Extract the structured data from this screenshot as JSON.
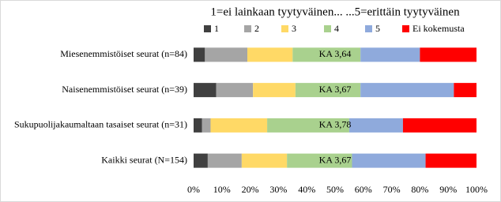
{
  "chart_data": {
    "type": "stacked-bar-horizontal",
    "title": "1=ei lainkaan tyytyväinen... ...5=erittäin tyytyväinen",
    "categories": [
      "Miesenemmistöiset seurat (n=84)",
      "Naisenemmistöiset seurat (n=39)",
      "Sukupuolijakaumaltaan tasaiset seurat (n=31)",
      "Kaikki seurat (N=154)"
    ],
    "annotations": [
      "KA 3,64",
      "KA 3,67",
      "KA 3,78",
      "KA 3,67"
    ],
    "series": [
      {
        "name": "1",
        "color": "#404040",
        "values": [
          4,
          8,
          3,
          5
        ]
      },
      {
        "name": "2",
        "color": "#a5a5a5",
        "values": [
          15,
          13,
          3,
          12
        ]
      },
      {
        "name": "3",
        "color": "#ffd966",
        "values": [
          16,
          15,
          20,
          16
        ]
      },
      {
        "name": "4",
        "color": "#a9d18e",
        "values": [
          24,
          23,
          29,
          23
        ]
      },
      {
        "name": "5",
        "color": "#8faadc",
        "values": [
          21,
          33,
          19,
          26
        ]
      },
      {
        "name": "Ei kokemusta",
        "color": "#ff0000",
        "values": [
          20,
          8,
          26,
          18
        ]
      }
    ],
    "xlim": [
      0,
      100
    ],
    "xticks": [
      {
        "value": 0,
        "label": "0%"
      },
      {
        "value": 10,
        "label": "10%"
      },
      {
        "value": 20,
        "label": "20%"
      },
      {
        "value": 30,
        "label": "30%"
      },
      {
        "value": 40,
        "label": "40%"
      },
      {
        "value": 50,
        "label": "50%"
      },
      {
        "value": 60,
        "label": "60%"
      },
      {
        "value": 70,
        "label": "70%"
      },
      {
        "value": 80,
        "label": "80%"
      },
      {
        "value": 90,
        "label": "90%"
      },
      {
        "value": 100,
        "label": "100%"
      }
    ],
    "legend": "top"
  }
}
